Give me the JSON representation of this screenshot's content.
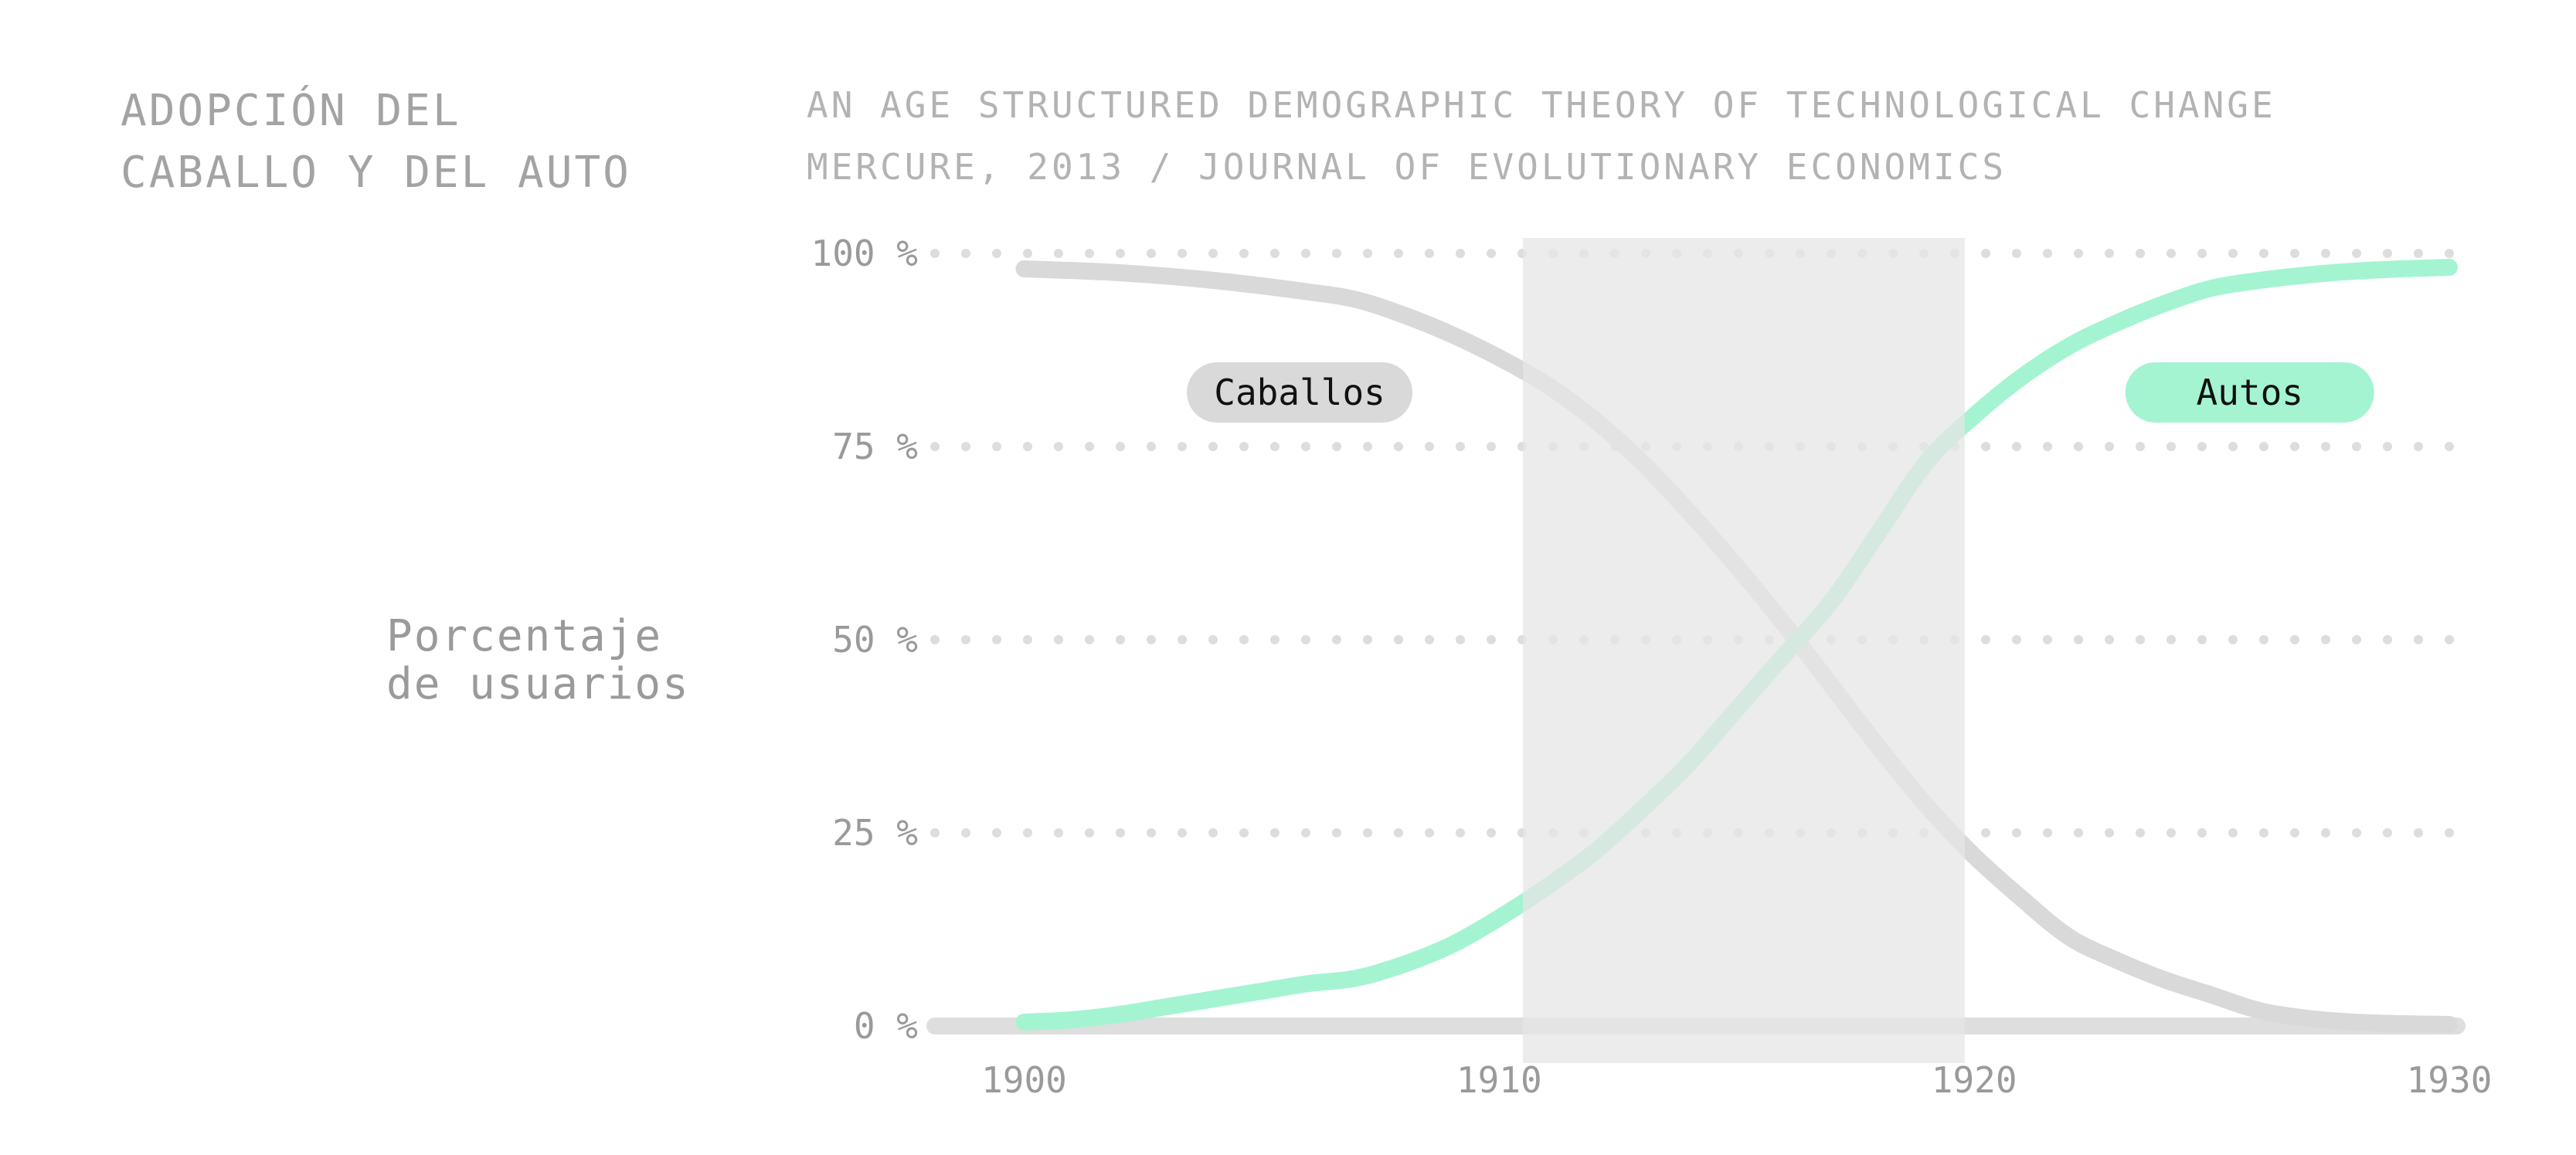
{
  "title": {
    "line1": "ADOPCIÓN DEL",
    "line2": "CABALLO Y DEL AUTO"
  },
  "subtitle": {
    "line1": "AN AGE STRUCTURED DEMOGRAPHIC THEORY OF TECHNOLOGICAL CHANGE",
    "line2": "MERCURE, 2013 / JOURNAL OF EVOLUTIONARY ECONOMICS"
  },
  "ylabel": {
    "line1": "Porcentaje",
    "line2": "de usuarios"
  },
  "colors": {
    "caballos": "#d9d9d9",
    "autos": "#a4f4d2",
    "highlight_band": "#e6e6e6",
    "grid": "#dddddd",
    "baseline": "#dedede"
  },
  "chart_data": {
    "type": "line",
    "x_ticks": [
      "1900",
      "1910",
      "1920",
      "1930"
    ],
    "y_ticks": [
      "0 %",
      "25 %",
      "50 %",
      "75 %",
      "100 %"
    ],
    "xlim": [
      1899,
      1930
    ],
    "ylim": [
      0,
      100
    ],
    "grid": "horizontal dotted",
    "highlight_range": [
      1910.5,
      1919.8
    ],
    "series": [
      {
        "name": "Caballos",
        "x": [
          1900,
          1902,
          1904,
          1906,
          1907,
          1908,
          1909,
          1910,
          1911,
          1912,
          1913,
          1914,
          1915,
          1916,
          1917,
          1918,
          1919,
          1920,
          1921,
          1922,
          1923,
          1924,
          1925,
          1926,
          1927,
          1928,
          1929,
          1930
        ],
        "y": [
          98,
          97.5,
          96.5,
          95,
          94,
          92,
          89.5,
          86.5,
          83,
          78.5,
          73,
          66.5,
          59.5,
          52,
          44,
          36,
          28.5,
          22,
          16.5,
          11.5,
          8.5,
          6,
          4,
          2,
          1,
          0.5,
          0.3,
          0.2
        ]
      },
      {
        "name": "Autos",
        "x": [
          1900,
          1901,
          1902,
          1903,
          1904,
          1905,
          1906,
          1907,
          1908,
          1909,
          1910,
          1911,
          1912,
          1913,
          1914,
          1915,
          1916,
          1917,
          1918,
          1919,
          1920,
          1921,
          1922,
          1923,
          1924,
          1925,
          1926,
          1927,
          1928,
          1929,
          1930
        ],
        "y": [
          0.5,
          0.8,
          1.5,
          2.5,
          3.5,
          4.5,
          5.5,
          6.2,
          8,
          10.5,
          14,
          18,
          22.5,
          28,
          34,
          41,
          48,
          55,
          64,
          73,
          79,
          84,
          88,
          91,
          93.5,
          95.5,
          96.5,
          97.2,
          97.7,
          98,
          98.2
        ]
      }
    ],
    "annotations": [
      {
        "text": "Caballos",
        "x": 1905.8,
        "y": 82
      },
      {
        "text": "Autos",
        "x": 1925.8,
        "y": 82
      }
    ]
  }
}
